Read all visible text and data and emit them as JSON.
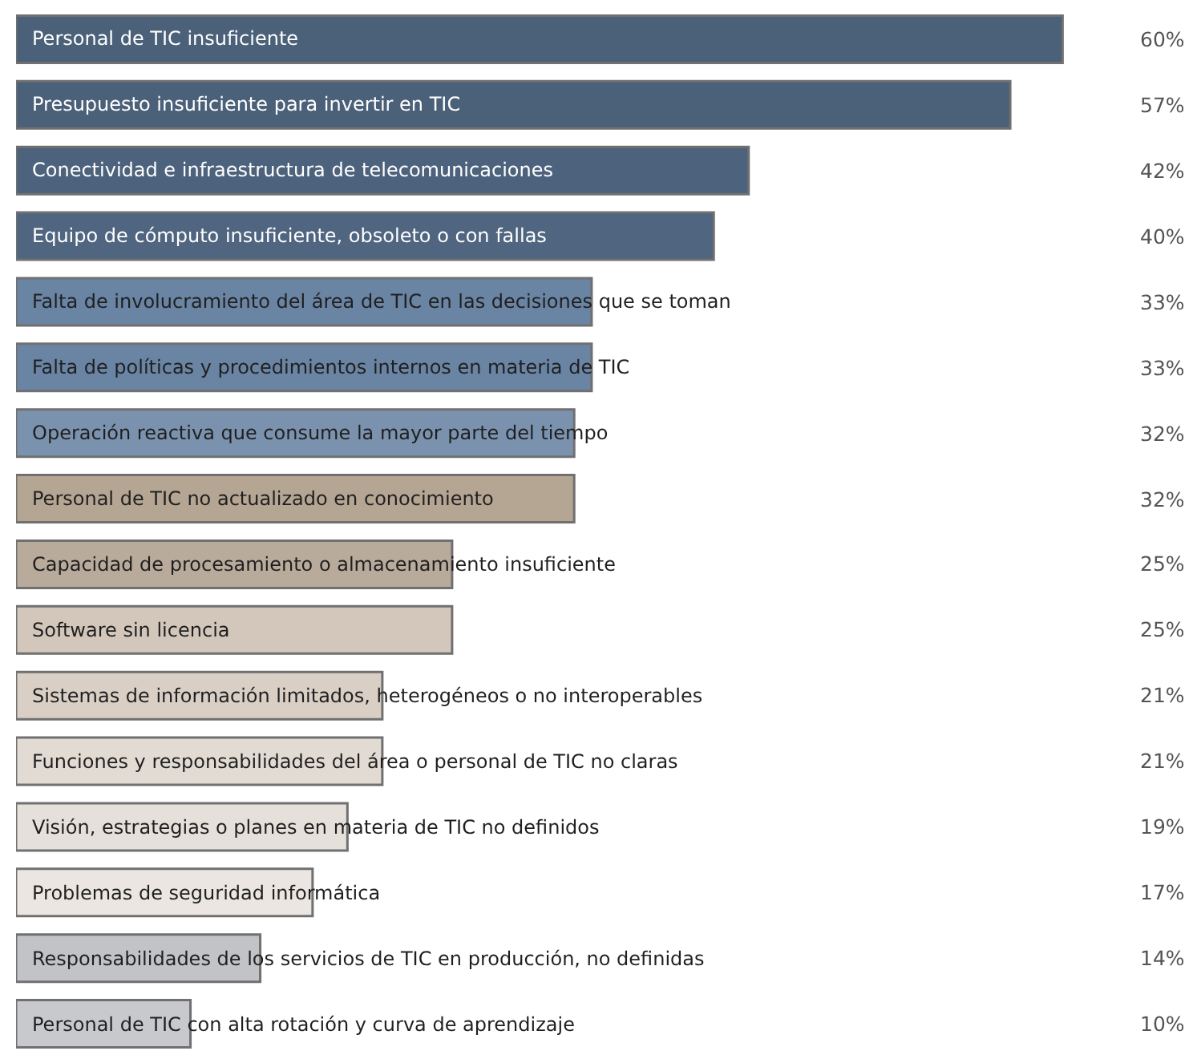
{
  "chart_data": {
    "type": "bar",
    "orientation": "horizontal",
    "categories": [
      "Personal de TIC insuficiente",
      "Presupuesto insuficiente para invertir en TIC",
      "Conectividad e infraestructura de telecomunicaciones",
      "Equipo de cómputo insuficiente, obsoleto o con fallas",
      "Falta de involucramiento del área de TIC en las decisiones que se toman",
      "Falta de políticas y procedimientos internos en materia de TIC",
      "Operación reactiva que consume la mayor parte del tiempo",
      "Personal de TIC no actualizado en conocimiento",
      "Capacidad de procesamiento o almacenamiento insuficiente",
      "Software sin licencia",
      "Sistemas de información limitados, heterogéneos o no interoperables",
      "Funciones y responsabilidades del área o personal de TIC no claras",
      "Visión, estrategias o planes en materia de TIC no definidos",
      "Problemas de seguridad informática",
      "Responsabilidades de los servicios de TIC en producción, no definidas",
      "Personal de TIC con alta rotación y curva de aprendizaje"
    ],
    "values": [
      60,
      57,
      42,
      40,
      33,
      33,
      32,
      32,
      25,
      25,
      21,
      21,
      19,
      17,
      14,
      10
    ],
    "colors": [
      "#4b6079",
      "#4b6079",
      "#4d627c",
      "#4f6580",
      "#6a84a3",
      "#6a84a3",
      "#7b92ae",
      "#b5a593",
      "#b9ab9b",
      "#d3c7bb",
      "#d9cfc5",
      "#e2dbd3",
      "#e6e0da",
      "#ebe6e1",
      "#c2c3c6",
      "#c8c9cc"
    ],
    "value_labels": [
      "60%",
      "57%",
      "42%",
      "40%",
      "33%",
      "33%",
      "32%",
      "32%",
      "25%",
      "25%",
      "21%",
      "21%",
      "19%",
      "17%",
      "14%",
      "10%"
    ]
  }
}
